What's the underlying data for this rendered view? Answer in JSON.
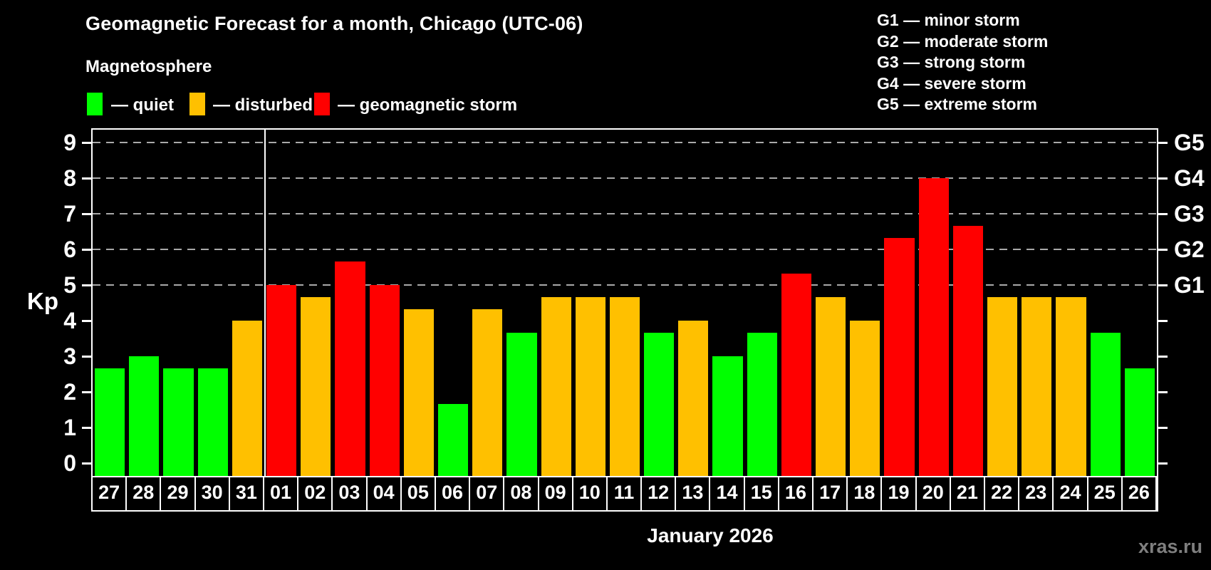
{
  "title": "Geomagnetic Forecast for a month, Chicago (UTC-06)",
  "subtitle": "Magnetosphere",
  "legend": {
    "items": [
      {
        "key": "quiet",
        "label": "— quiet",
        "color": "#00ff00"
      },
      {
        "key": "disturbed",
        "label": "— disturbed",
        "color": "#ffc000"
      },
      {
        "key": "storm",
        "label": "— geomagnetic storm",
        "color": "#ff0000"
      }
    ]
  },
  "g_scale_legend": [
    "G1 — minor storm",
    "G2 — moderate storm",
    "G3 — strong storm",
    "G4 — severe storm",
    "G5 — extreme storm"
  ],
  "watermark": "xras.ru",
  "chart_data": {
    "type": "bar",
    "title": "Geomagnetic Forecast for a month, Chicago (UTC-06)",
    "ylabel": "Kp",
    "xlabel": "January 2026",
    "ylim": [
      0,
      9
    ],
    "y_ticks": [
      0,
      1,
      2,
      3,
      4,
      5,
      6,
      7,
      8,
      9
    ],
    "gridlines_at_kp": [
      5,
      6,
      7,
      8,
      9
    ],
    "grid": "dashed horizontal at storm levels only",
    "legend_position": "top",
    "right_axis": [
      {
        "kp": 5,
        "label": "G1"
      },
      {
        "kp": 6,
        "label": "G2"
      },
      {
        "kp": 7,
        "label": "G3"
      },
      {
        "kp": 8,
        "label": "G4"
      },
      {
        "kp": 9,
        "label": "G5"
      }
    ],
    "status_colors": {
      "quiet": "#00ff00",
      "disturbed": "#ffc000",
      "storm": "#ff0000"
    },
    "month_divider_after_index": 4,
    "categories": [
      "27",
      "28",
      "29",
      "30",
      "31",
      "01",
      "02",
      "03",
      "04",
      "05",
      "06",
      "07",
      "08",
      "09",
      "10",
      "11",
      "12",
      "13",
      "14",
      "15",
      "16",
      "17",
      "18",
      "19",
      "20",
      "21",
      "22",
      "23",
      "24",
      "25",
      "26"
    ],
    "values": [
      2.67,
      3.0,
      2.67,
      2.67,
      4.0,
      5.0,
      4.67,
      5.67,
      5.0,
      4.33,
      1.67,
      4.33,
      3.67,
      4.67,
      4.67,
      4.67,
      3.67,
      4.0,
      3.0,
      3.67,
      5.33,
      4.67,
      4.0,
      6.33,
      8.0,
      6.67,
      4.67,
      4.67,
      4.67,
      3.67,
      2.67
    ],
    "statuses": [
      "quiet",
      "quiet",
      "quiet",
      "quiet",
      "disturbed",
      "storm",
      "disturbed",
      "storm",
      "storm",
      "disturbed",
      "quiet",
      "disturbed",
      "quiet",
      "disturbed",
      "disturbed",
      "disturbed",
      "quiet",
      "disturbed",
      "quiet",
      "quiet",
      "storm",
      "disturbed",
      "disturbed",
      "storm",
      "storm",
      "storm",
      "disturbed",
      "disturbed",
      "disturbed",
      "quiet",
      "quiet"
    ]
  }
}
